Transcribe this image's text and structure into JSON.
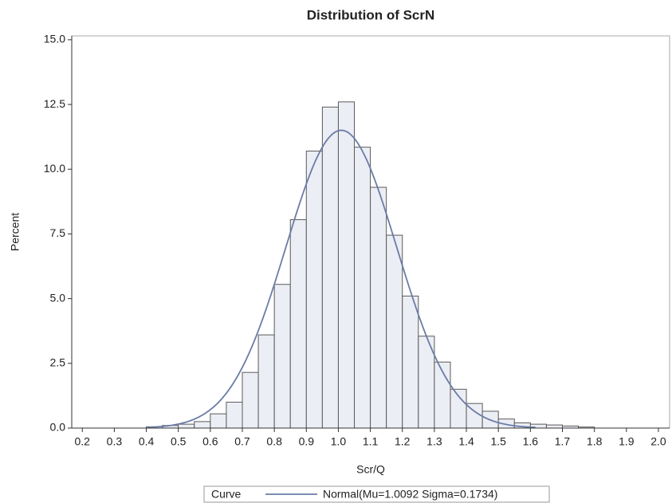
{
  "chart_data": {
    "type": "histogram",
    "title": "Distribution of ScrN",
    "xlabel": "Scr/Q",
    "ylabel": "Percent",
    "bins": [
      0.4,
      0.45,
      0.5,
      0.55,
      0.6,
      0.65,
      0.7,
      0.75,
      0.8,
      0.85,
      0.9,
      0.95,
      1.0,
      1.05,
      1.1,
      1.15,
      1.2,
      1.25,
      1.3,
      1.35,
      1.4,
      1.45,
      1.5,
      1.55,
      1.6,
      1.65,
      1.7,
      1.75,
      1.8
    ],
    "counts": [
      0.05,
      0.1,
      0.15,
      0.25,
      0.55,
      1.0,
      2.15,
      3.6,
      5.55,
      8.05,
      10.7,
      12.4,
      12.6,
      10.85,
      9.3,
      7.45,
      5.1,
      3.55,
      2.55,
      1.5,
      0.95,
      0.65,
      0.35,
      0.2,
      0.15,
      0.12,
      0.08,
      0.04
    ],
    "color": "#eceef5",
    "edgecolor": "#5a5a5a",
    "curve": {
      "name": "Normal(Mu=1.0092 Sigma=0.1734)",
      "mu": 1.0092,
      "sigma": 0.1734,
      "color": "#6a7ca6"
    },
    "legend_title": "Curve",
    "xlim": [
      0.167,
      2.035
    ],
    "xticks": [
      0.2,
      0.3,
      0.4,
      0.5,
      0.6,
      0.7,
      0.8,
      0.9,
      {
        "value": 1,
        "label": "1.0"
      },
      1.1,
      1.2,
      1.3,
      1.4,
      1.5,
      1.6,
      1.7,
      1.8,
      1.9,
      {
        "value": 2,
        "label": "2.0"
      }
    ],
    "ylim": [
      0,
      15.15
    ],
    "yticks": [
      {
        "value": 0,
        "label": "0.0"
      },
      2.5,
      {
        "value": 5,
        "label": "5.0"
      },
      7.5,
      {
        "value": 10,
        "label": "10.0"
      },
      12.5,
      {
        "value": 15,
        "label": "15.0"
      }
    ],
    "grid": false
  }
}
